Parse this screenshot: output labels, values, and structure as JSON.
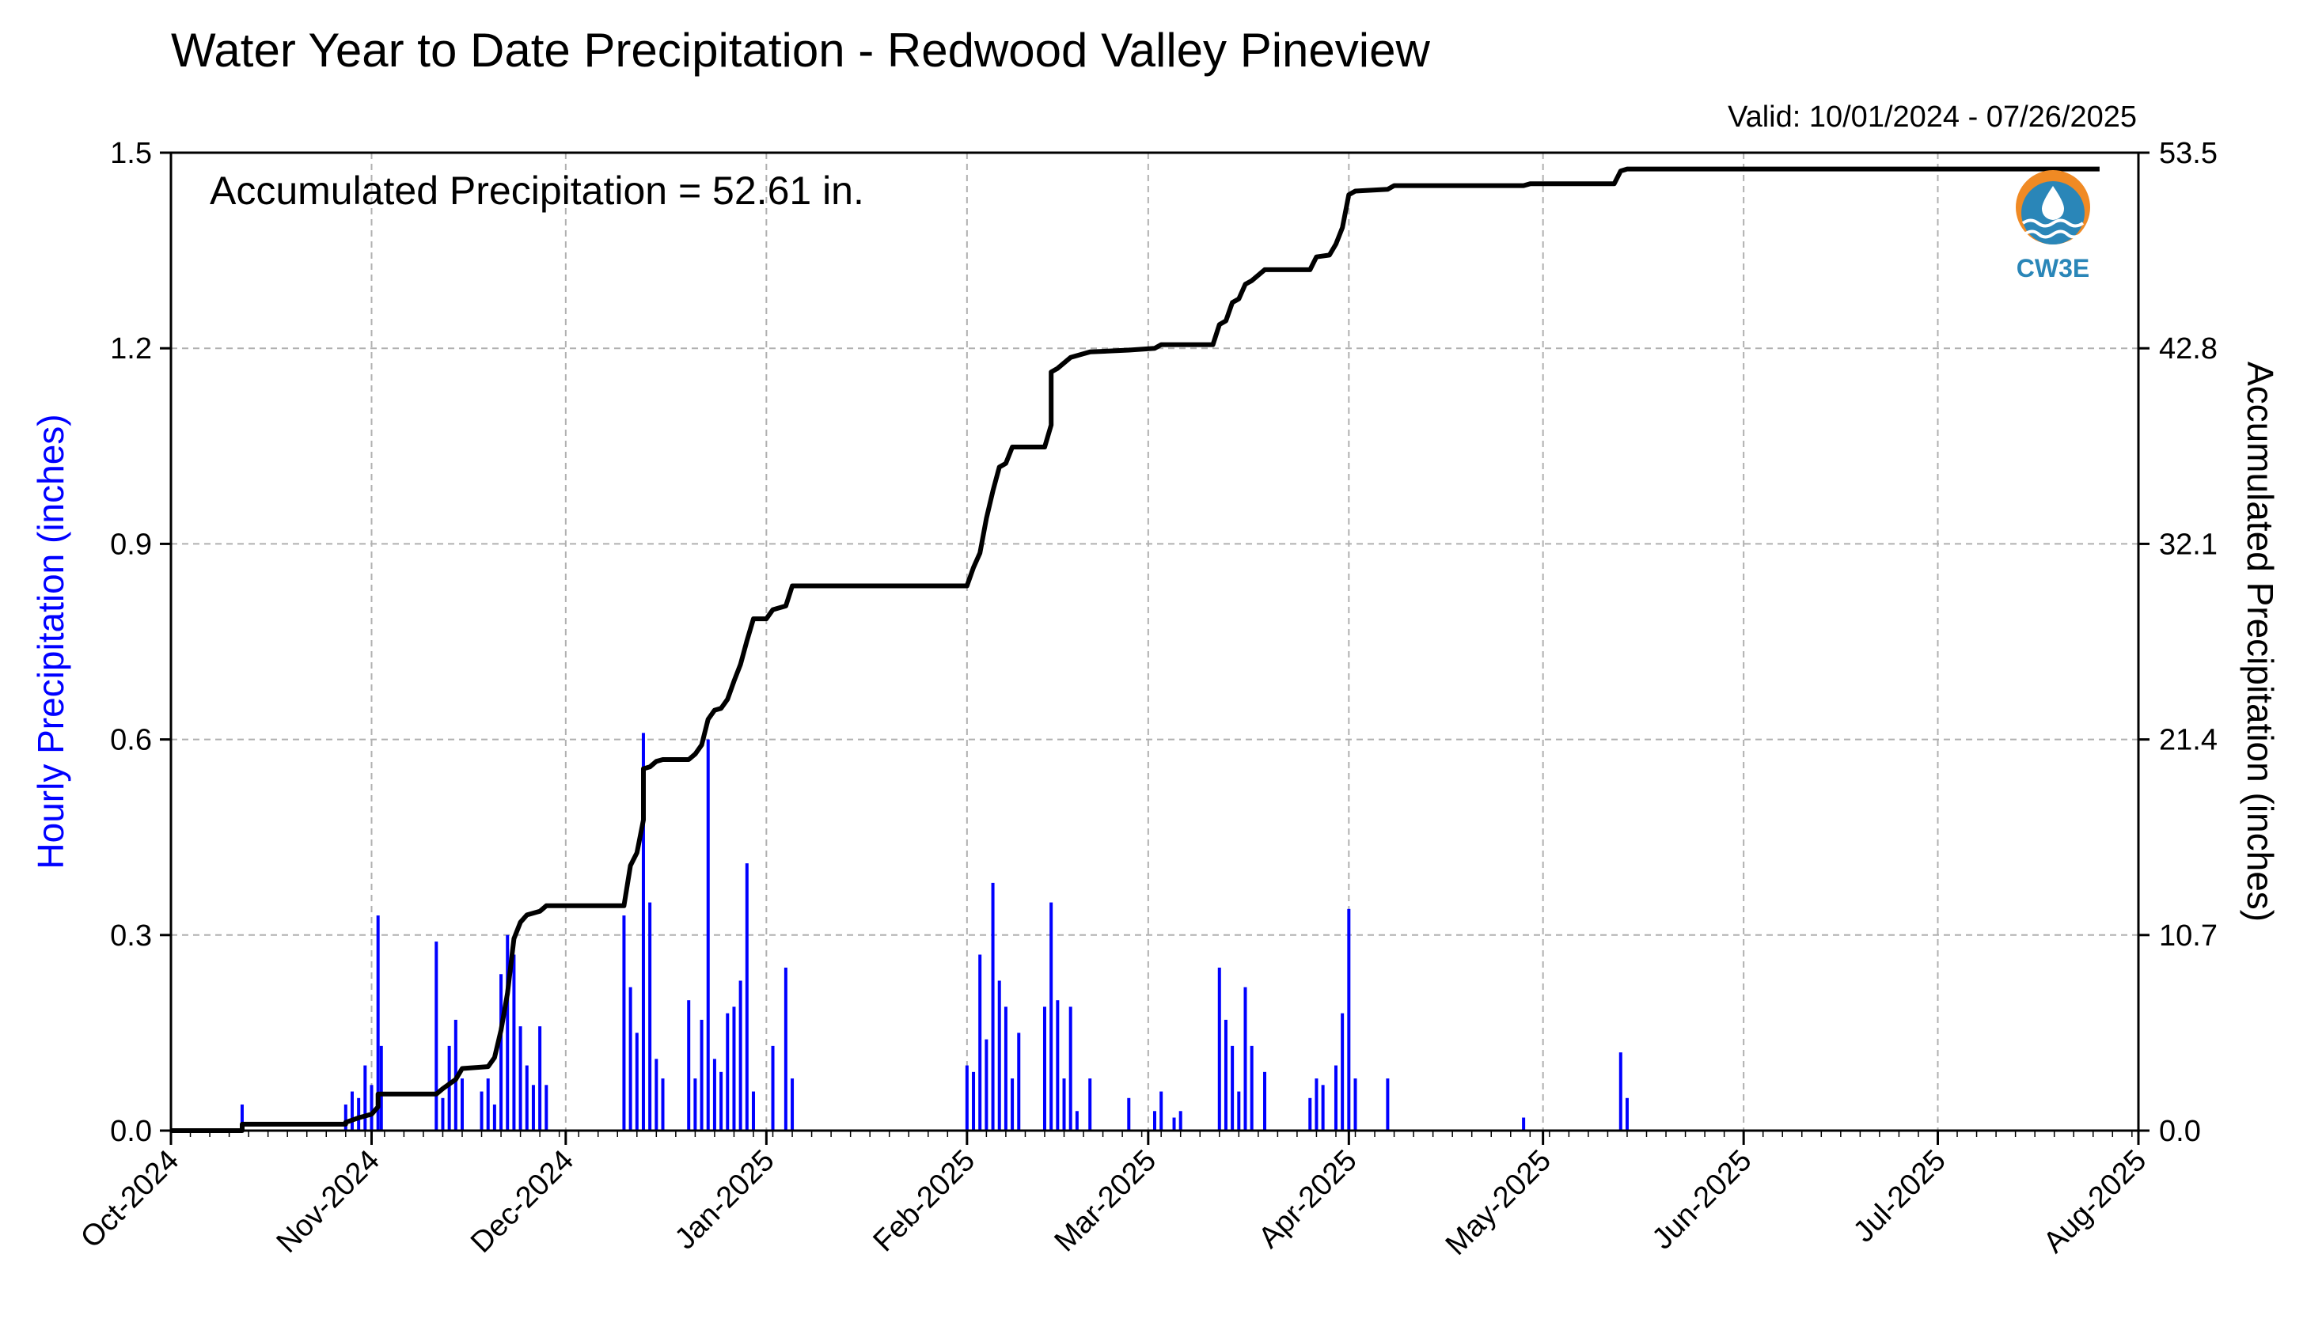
{
  "chart_data": {
    "type": "bar",
    "title": "Water Year to Date Precipitation - Redwood Valley Pineview",
    "subtitle": "Valid: 10/01/2024 - 07/26/2025",
    "annotation": "Accumulated Precipitation = 52.61 in.",
    "ylabel": "Hourly Precipitation (inches)",
    "y2label": "Accumulated Precipitation (inches)",
    "xlim": [
      "2024-10-01",
      "2025-08-01"
    ],
    "ylim": [
      0,
      1.5
    ],
    "y2lim": [
      0,
      53.5
    ],
    "x_ticks": [
      "Oct-2024",
      "Nov-2024",
      "Dec-2024",
      "Jan-2025",
      "Feb-2025",
      "Mar-2025",
      "Apr-2025",
      "May-2025",
      "Jun-2025",
      "Jul-2025",
      "Aug-2025"
    ],
    "x_tick_dates": [
      "2024-10-01",
      "2024-11-01",
      "2024-12-01",
      "2025-01-01",
      "2025-02-01",
      "2025-03-01",
      "2025-04-01",
      "2025-05-01",
      "2025-06-01",
      "2025-07-01",
      "2025-08-01"
    ],
    "y_ticks": [
      "0.0",
      "0.3",
      "0.6",
      "0.9",
      "1.2",
      "1.5"
    ],
    "y2_ticks": [
      "0.0",
      "10.7",
      "21.4",
      "32.1",
      "42.8",
      "53.5"
    ],
    "grid": true,
    "colors": {
      "hourly": "#0000ff",
      "accumulated": "#000000",
      "ylabel": "#0000ff",
      "grid": "#b0b0b0"
    },
    "series": [
      {
        "name": "Hourly Precipitation",
        "type": "bar",
        "points": [
          [
            "2024-10-12",
            0.04
          ],
          [
            "2024-10-28",
            0.04
          ],
          [
            "2024-10-29",
            0.06
          ],
          [
            "2024-10-30",
            0.05
          ],
          [
            "2024-10-31",
            0.1
          ],
          [
            "2024-11-01",
            0.07
          ],
          [
            "2024-11-02",
            0.33
          ],
          [
            "2024-11-02T12",
            0.13
          ],
          [
            "2024-11-11",
            0.29
          ],
          [
            "2024-11-12",
            0.05
          ],
          [
            "2024-11-13",
            0.13
          ],
          [
            "2024-11-14",
            0.17
          ],
          [
            "2024-11-15",
            0.08
          ],
          [
            "2024-11-18",
            0.06
          ],
          [
            "2024-11-19",
            0.08
          ],
          [
            "2024-11-20",
            0.04
          ],
          [
            "2024-11-21",
            0.24
          ],
          [
            "2024-11-22",
            0.3
          ],
          [
            "2024-11-23",
            0.27
          ],
          [
            "2024-11-24",
            0.16
          ],
          [
            "2024-11-25",
            0.1
          ],
          [
            "2024-11-26",
            0.07
          ],
          [
            "2024-11-27",
            0.16
          ],
          [
            "2024-11-28",
            0.07
          ],
          [
            "2024-12-10",
            0.33
          ],
          [
            "2024-12-11",
            0.22
          ],
          [
            "2024-12-12",
            0.15
          ],
          [
            "2024-12-13",
            0.61
          ],
          [
            "2024-12-14",
            0.35
          ],
          [
            "2024-12-15",
            0.11
          ],
          [
            "2024-12-16",
            0.08
          ],
          [
            "2024-12-20",
            0.2
          ],
          [
            "2024-12-21",
            0.08
          ],
          [
            "2024-12-22",
            0.17
          ],
          [
            "2024-12-23",
            0.6
          ],
          [
            "2024-12-24",
            0.11
          ],
          [
            "2024-12-25",
            0.09
          ],
          [
            "2024-12-26",
            0.18
          ],
          [
            "2024-12-27",
            0.19
          ],
          [
            "2024-12-28",
            0.23
          ],
          [
            "2024-12-29",
            0.41
          ],
          [
            "2024-12-30",
            0.06
          ],
          [
            "2025-01-02",
            0.13
          ],
          [
            "2025-01-04",
            0.25
          ],
          [
            "2025-01-05",
            0.08
          ],
          [
            "2025-02-01",
            0.1
          ],
          [
            "2025-02-02",
            0.09
          ],
          [
            "2025-02-03",
            0.27
          ],
          [
            "2025-02-04",
            0.14
          ],
          [
            "2025-02-05",
            0.38
          ],
          [
            "2025-02-06",
            0.23
          ],
          [
            "2025-02-07",
            0.19
          ],
          [
            "2025-02-08",
            0.08
          ],
          [
            "2025-02-09",
            0.15
          ],
          [
            "2025-02-13",
            0.19
          ],
          [
            "2025-02-14",
            0.35
          ],
          [
            "2025-02-15",
            0.2
          ],
          [
            "2025-02-16",
            0.08
          ],
          [
            "2025-02-17",
            0.19
          ],
          [
            "2025-02-18",
            0.03
          ],
          [
            "2025-02-20",
            0.08
          ],
          [
            "2025-02-26",
            0.05
          ],
          [
            "2025-03-02",
            0.03
          ],
          [
            "2025-03-03",
            0.06
          ],
          [
            "2025-03-05",
            0.02
          ],
          [
            "2025-03-06",
            0.03
          ],
          [
            "2025-03-12",
            0.25
          ],
          [
            "2025-03-13",
            0.17
          ],
          [
            "2025-03-14",
            0.13
          ],
          [
            "2025-03-15",
            0.06
          ],
          [
            "2025-03-16",
            0.22
          ],
          [
            "2025-03-17",
            0.13
          ],
          [
            "2025-03-19",
            0.09
          ],
          [
            "2025-03-26",
            0.05
          ],
          [
            "2025-03-27",
            0.08
          ],
          [
            "2025-03-28",
            0.07
          ],
          [
            "2025-03-30",
            0.1
          ],
          [
            "2025-03-31",
            0.18
          ],
          [
            "2025-04-01",
            0.34
          ],
          [
            "2025-04-02",
            0.08
          ],
          [
            "2025-04-07",
            0.08
          ],
          [
            "2025-04-28",
            0.02
          ],
          [
            "2025-05-13",
            0.12
          ],
          [
            "2025-05-14",
            0.05
          ]
        ]
      },
      {
        "name": "Accumulated Precipitation",
        "type": "line",
        "points": [
          [
            "2024-10-01",
            0
          ],
          [
            "2024-10-12",
            0
          ],
          [
            "2024-10-12",
            0.35
          ],
          [
            "2024-10-28",
            0.35
          ],
          [
            "2024-10-28",
            0.45
          ],
          [
            "2024-10-30",
            0.7
          ],
          [
            "2024-11-01",
            0.9
          ],
          [
            "2024-11-02",
            1.3
          ],
          [
            "2024-11-02",
            2.0
          ],
          [
            "2024-11-11",
            2.0
          ],
          [
            "2024-11-12",
            2.3
          ],
          [
            "2024-11-14",
            2.8
          ],
          [
            "2024-11-15",
            3.4
          ],
          [
            "2024-11-19",
            3.5
          ],
          [
            "2024-11-20",
            4.0
          ],
          [
            "2024-11-21",
            5.5
          ],
          [
            "2024-11-22",
            7.5
          ],
          [
            "2024-11-23",
            10.5
          ],
          [
            "2024-11-24",
            11.4
          ],
          [
            "2024-11-25",
            11.8
          ],
          [
            "2024-11-27",
            12.0
          ],
          [
            "2024-11-28",
            12.3
          ],
          [
            "2024-12-10",
            12.3
          ],
          [
            "2024-12-11",
            14.5
          ],
          [
            "2024-12-12",
            15.2
          ],
          [
            "2024-12-13",
            17.0
          ],
          [
            "2024-12-13",
            19.8
          ],
          [
            "2024-12-14",
            19.9
          ],
          [
            "2024-12-15",
            20.2
          ],
          [
            "2024-12-16",
            20.3
          ],
          [
            "2024-12-20",
            20.3
          ],
          [
            "2024-12-21",
            20.6
          ],
          [
            "2024-12-22",
            21.1
          ],
          [
            "2024-12-23",
            22.5
          ],
          [
            "2024-12-24",
            23.0
          ],
          [
            "2024-12-25",
            23.1
          ],
          [
            "2024-12-26",
            23.6
          ],
          [
            "2024-12-27",
            24.6
          ],
          [
            "2024-12-28",
            25.5
          ],
          [
            "2024-12-29",
            26.8
          ],
          [
            "2024-12-30",
            28.0
          ],
          [
            "2024-12-31",
            28.0
          ],
          [
            "2025-01-01",
            28.0
          ],
          [
            "2025-01-02",
            28.5
          ],
          [
            "2025-01-04",
            28.7
          ],
          [
            "2025-01-05",
            29.8
          ],
          [
            "2025-02-01",
            29.8
          ],
          [
            "2025-02-02",
            30.8
          ],
          [
            "2025-02-03",
            31.6
          ],
          [
            "2025-02-04",
            33.5
          ],
          [
            "2025-02-05",
            35.0
          ],
          [
            "2025-02-06",
            36.3
          ],
          [
            "2025-02-07",
            36.5
          ],
          [
            "2025-02-08",
            37.4
          ],
          [
            "2025-02-13",
            37.4
          ],
          [
            "2025-02-14",
            38.6
          ],
          [
            "2025-02-14",
            41.5
          ],
          [
            "2025-02-15",
            41.7
          ],
          [
            "2025-02-17",
            42.3
          ],
          [
            "2025-02-19",
            42.5
          ],
          [
            "2025-02-20",
            42.6
          ],
          [
            "2025-02-26",
            42.7
          ],
          [
            "2025-03-02",
            42.8
          ],
          [
            "2025-03-03",
            43.0
          ],
          [
            "2025-03-11",
            43.0
          ],
          [
            "2025-03-12",
            44.1
          ],
          [
            "2025-03-13",
            44.3
          ],
          [
            "2025-03-14",
            45.3
          ],
          [
            "2025-03-15",
            45.5
          ],
          [
            "2025-03-16",
            46.3
          ],
          [
            "2025-03-17",
            46.5
          ],
          [
            "2025-03-19",
            47.1
          ],
          [
            "2025-03-26",
            47.1
          ],
          [
            "2025-03-27",
            47.8
          ],
          [
            "2025-03-29",
            47.9
          ],
          [
            "2025-03-30",
            48.5
          ],
          [
            "2025-03-31",
            49.4
          ],
          [
            "2025-04-01",
            51.2
          ],
          [
            "2025-04-02",
            51.4
          ],
          [
            "2025-04-07",
            51.5
          ],
          [
            "2025-04-08",
            51.7
          ],
          [
            "2025-04-28",
            51.7
          ],
          [
            "2025-04-29",
            51.8
          ],
          [
            "2025-05-12",
            51.8
          ],
          [
            "2025-05-13",
            52.5
          ],
          [
            "2025-05-14",
            52.61
          ],
          [
            "2025-07-26",
            52.61
          ]
        ]
      }
    ]
  },
  "logo": {
    "text": "CW3E"
  }
}
